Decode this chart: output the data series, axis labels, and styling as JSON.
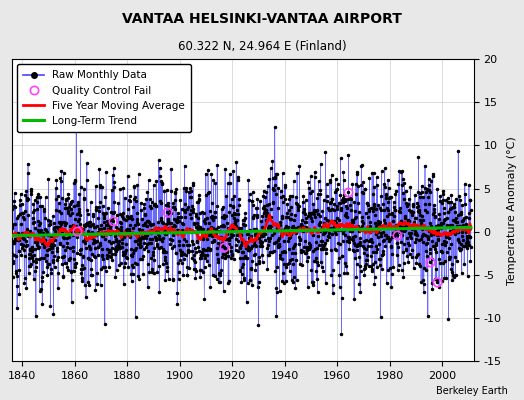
{
  "title": "VANTAA HELSINKI-VANTAA AIRPORT",
  "subtitle": "60.322 N, 24.964 E (Finland)",
  "ylabel": "Temperature Anomaly (°C)",
  "attribution": "Berkeley Earth",
  "year_start": 1828,
  "year_end": 2011,
  "ylim": [
    -15,
    20
  ],
  "yticks": [
    -15,
    -10,
    -5,
    0,
    5,
    10,
    15,
    20
  ],
  "xticks": [
    1840,
    1860,
    1880,
    1900,
    1920,
    1940,
    1960,
    1980,
    2000
  ],
  "raw_color": "#4444ff",
  "ma_color": "#ff0000",
  "trend_color": "#00bb00",
  "qc_color": "#ff44ff",
  "background_color": "#e8e8e8",
  "plot_background": "#ffffff",
  "legend_entries": [
    "Raw Monthly Data",
    "Quality Control Fail",
    "Five Year Moving Average",
    "Long-Term Trend"
  ],
  "seed": 12345,
  "noise_std": 3.2,
  "n_qc": 8
}
